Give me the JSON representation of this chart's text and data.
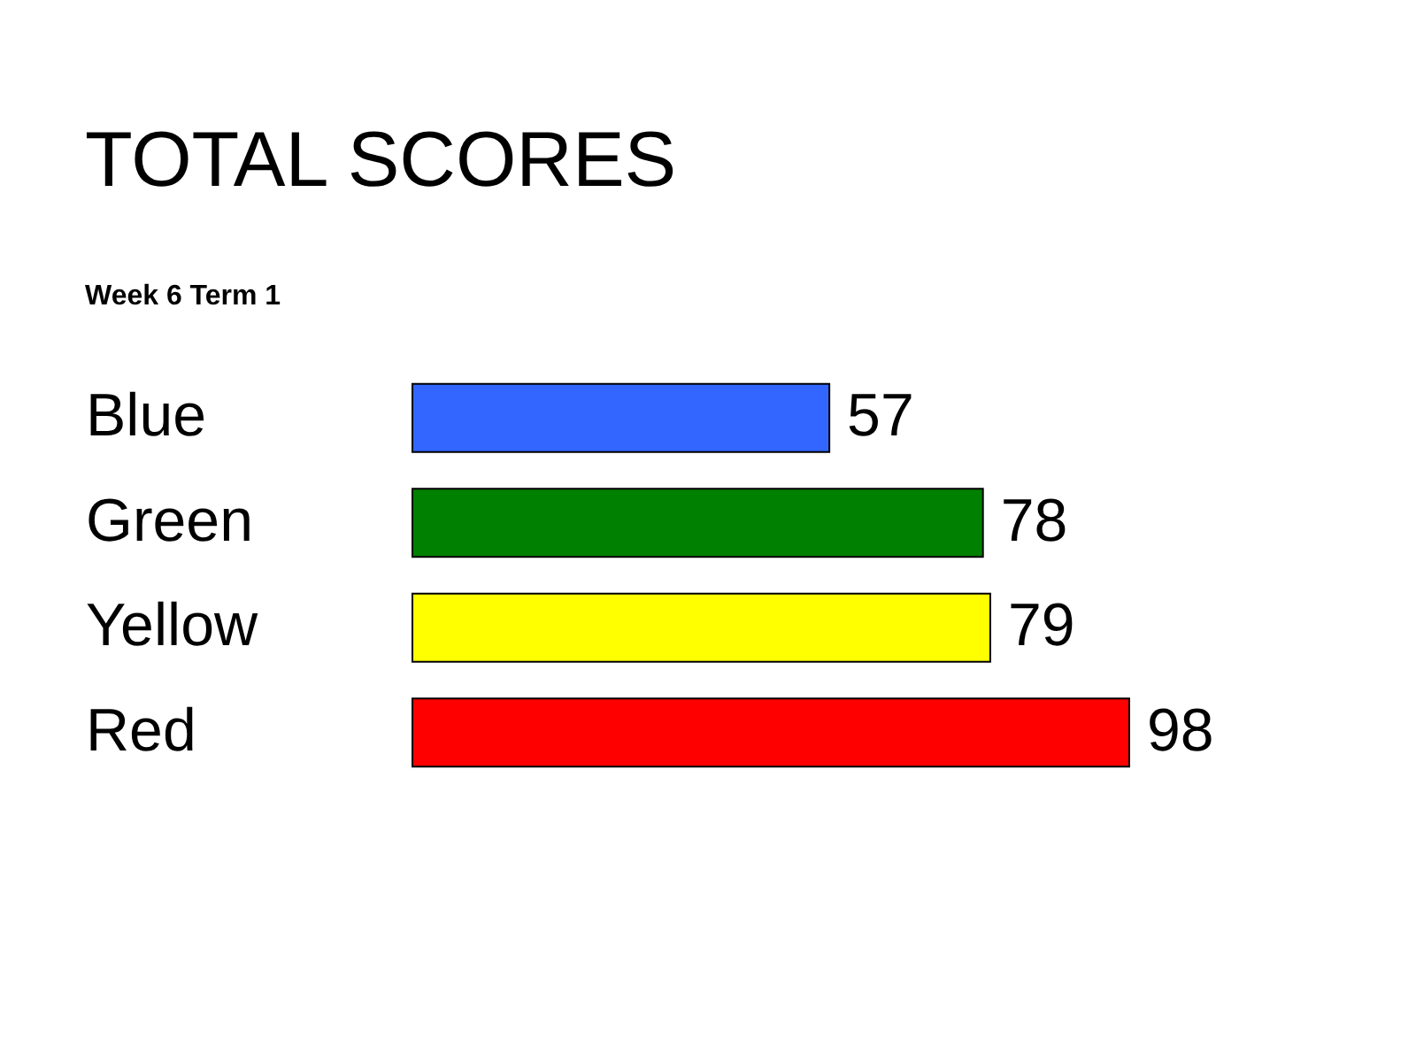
{
  "chart_data": {
    "type": "bar",
    "orientation": "horizontal",
    "title": "TOTAL SCORES",
    "subtitle": "Week 6 Term 1",
    "categories": [
      "Blue",
      "Green",
      "Yellow",
      "Red"
    ],
    "values": [
      57,
      78,
      79,
      98
    ],
    "colors": [
      "#3366ff",
      "#008000",
      "#ffff00",
      "#ff0000"
    ],
    "data_labels": true
  }
}
